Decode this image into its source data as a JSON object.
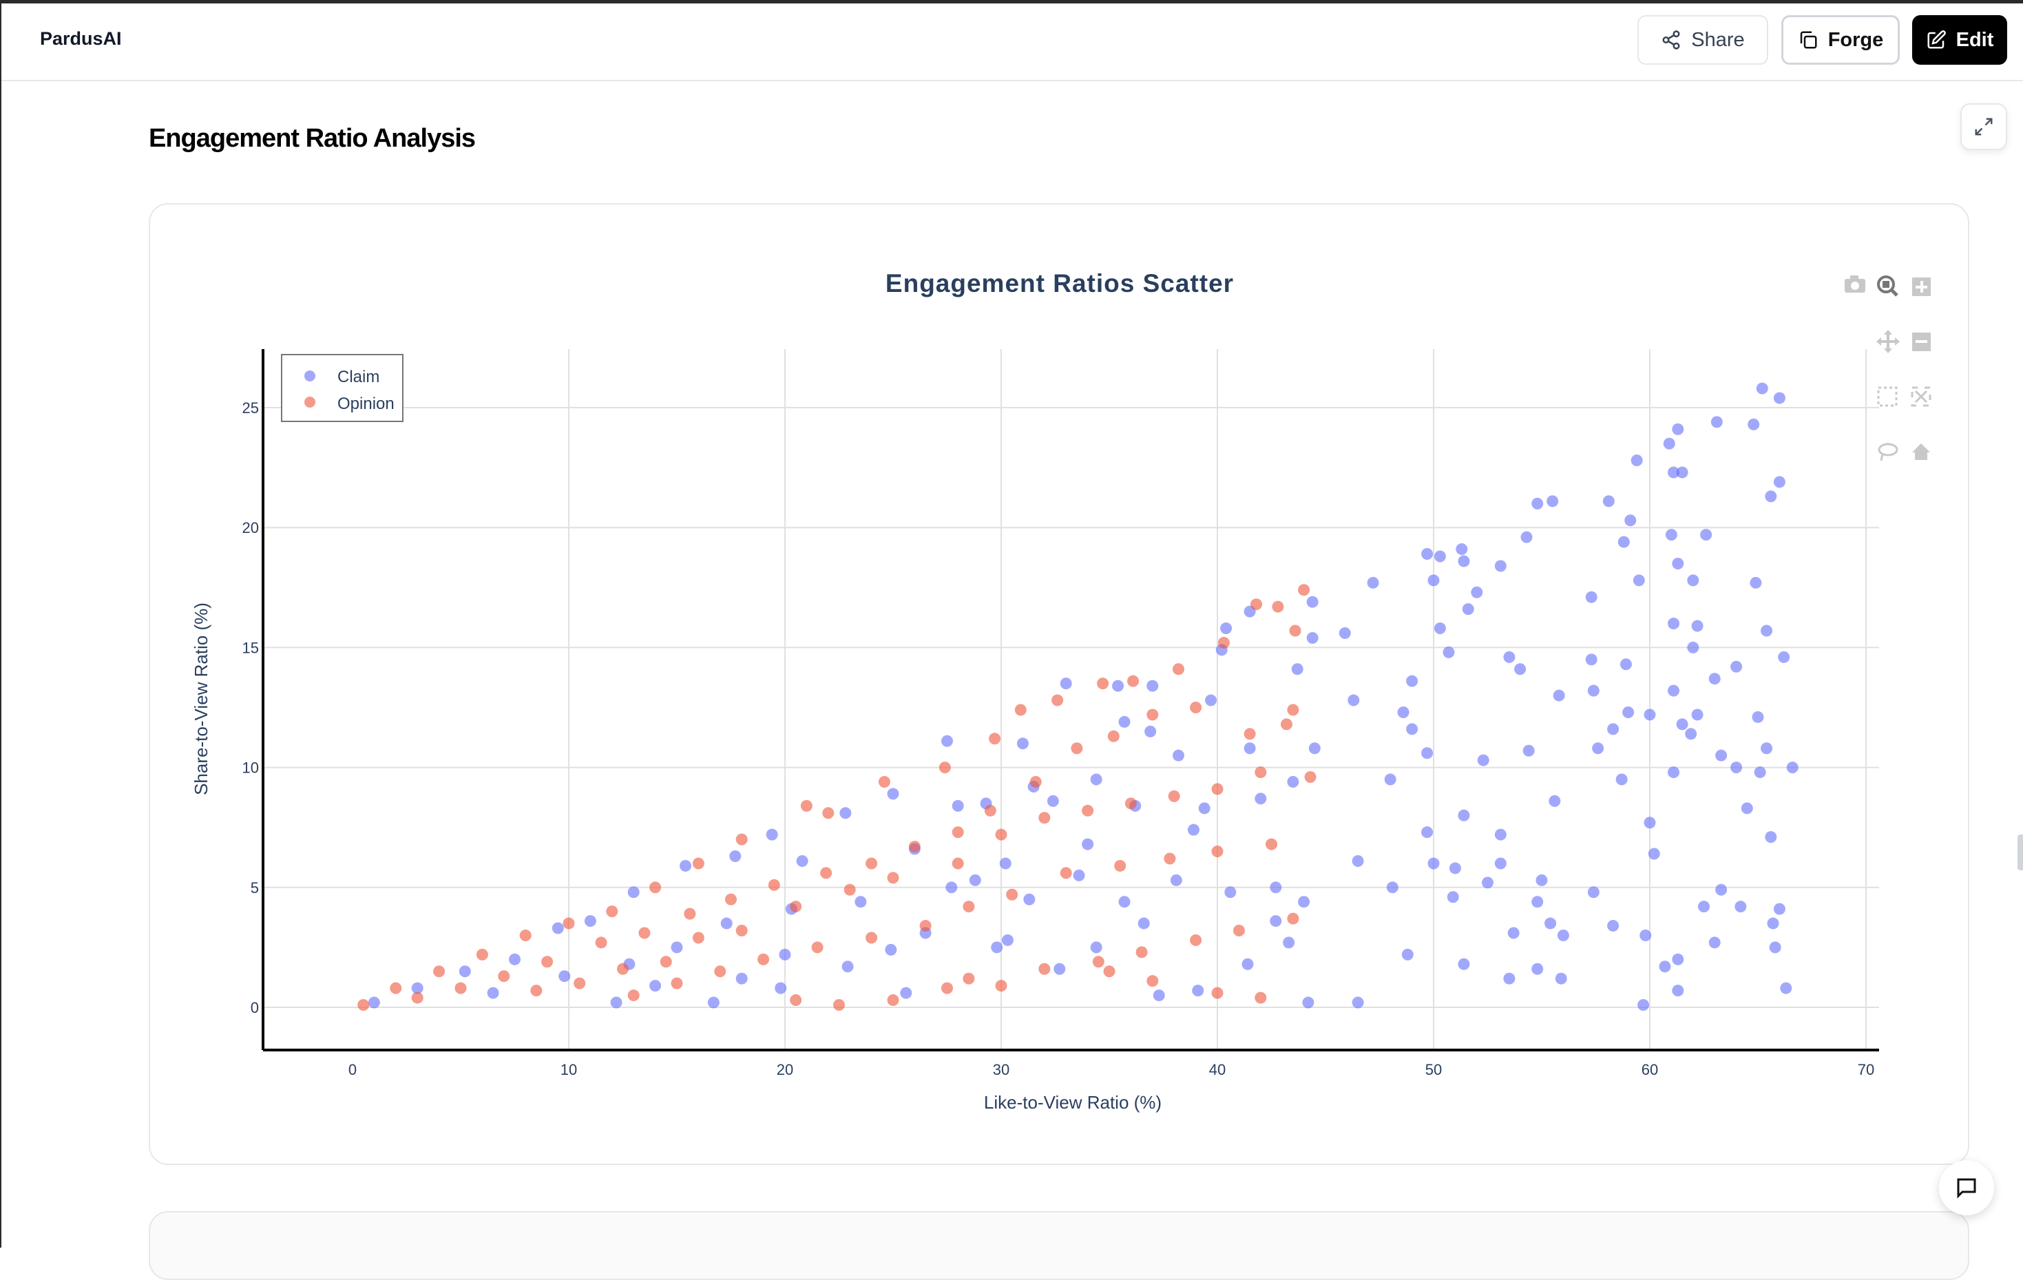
{
  "header": {
    "brand": "PardusAI",
    "share_label": "Share",
    "forge_label": "Forge",
    "edit_label": "Edit"
  },
  "section": {
    "title": "Engagement Ratio Analysis"
  },
  "colors": {
    "claim": "#636efa",
    "opinion": "#ef553b",
    "title": "#2a3f5f"
  },
  "chart_data": {
    "type": "scatter",
    "title": "Engagement Ratios Scatter",
    "xlabel": "Like-to-View Ratio (%)",
    "ylabel": "Share-to-View Ratio (%)",
    "xlim": [
      -4,
      70.5
    ],
    "ylim": [
      -1.8,
      27.5
    ],
    "xticks": [
      0,
      10,
      20,
      30,
      40,
      50,
      60,
      70
    ],
    "yticks": [
      0,
      5,
      10,
      15,
      20,
      25
    ],
    "grid": true,
    "legend": "top-left",
    "series": [
      {
        "name": "Claim",
        "points": [
          [
            65.2,
            25.8
          ],
          [
            66,
            25.4
          ],
          [
            63.1,
            24.4
          ],
          [
            64.8,
            24.3
          ],
          [
            61.3,
            24.1
          ],
          [
            60.9,
            23.5
          ],
          [
            59.4,
            22.8
          ],
          [
            61.5,
            22.3
          ],
          [
            61.1,
            22.3
          ],
          [
            66,
            21.9
          ],
          [
            65.6,
            21.3
          ],
          [
            58.1,
            21.1
          ],
          [
            54.8,
            21
          ],
          [
            55.5,
            21.1
          ],
          [
            59.1,
            20.3
          ],
          [
            61,
            19.7
          ],
          [
            62.6,
            19.7
          ],
          [
            54.3,
            19.6
          ],
          [
            58.8,
            19.4
          ],
          [
            51.3,
            19.1
          ],
          [
            49.7,
            18.9
          ],
          [
            50.3,
            18.8
          ],
          [
            51.4,
            18.6
          ],
          [
            61.3,
            18.5
          ],
          [
            53.1,
            18.4
          ],
          [
            59.5,
            17.8
          ],
          [
            50,
            17.8
          ],
          [
            62,
            17.8
          ],
          [
            47.2,
            17.7
          ],
          [
            52,
            17.3
          ],
          [
            64.9,
            17.7
          ],
          [
            57.3,
            17.1
          ],
          [
            51.6,
            16.6
          ],
          [
            61.1,
            16
          ],
          [
            62.2,
            15.9
          ],
          [
            65.4,
            15.7
          ],
          [
            50.3,
            15.8
          ],
          [
            45.9,
            15.6
          ],
          [
            62,
            15
          ],
          [
            50.7,
            14.8
          ],
          [
            53.5,
            14.6
          ],
          [
            57.3,
            14.5
          ],
          [
            58.9,
            14.3
          ],
          [
            66.2,
            14.6
          ],
          [
            64,
            14.2
          ],
          [
            54,
            14.1
          ],
          [
            49,
            13.6
          ],
          [
            57.4,
            13.2
          ],
          [
            61.1,
            13.2
          ],
          [
            63,
            13.7
          ],
          [
            55.8,
            13
          ],
          [
            46.3,
            12.8
          ],
          [
            48.6,
            12.3
          ],
          [
            59,
            12.3
          ],
          [
            60,
            12.2
          ],
          [
            62.2,
            12.2
          ],
          [
            65,
            12.1
          ],
          [
            49,
            11.6
          ],
          [
            58.3,
            11.6
          ],
          [
            61.5,
            11.8
          ],
          [
            61.9,
            11.4
          ],
          [
            57.6,
            10.8
          ],
          [
            49.7,
            10.6
          ],
          [
            54.4,
            10.7
          ],
          [
            65.4,
            10.8
          ],
          [
            64,
            10
          ],
          [
            66.6,
            10
          ],
          [
            52.3,
            10.3
          ],
          [
            63.3,
            10.5
          ],
          [
            48,
            9.5
          ],
          [
            58.7,
            9.5
          ],
          [
            61.1,
            9.8
          ],
          [
            65.1,
            9.8
          ],
          [
            51.4,
            8
          ],
          [
            60,
            7.7
          ],
          [
            64.5,
            8.3
          ],
          [
            55.6,
            8.6
          ],
          [
            65.6,
            7.1
          ],
          [
            49.7,
            7.3
          ],
          [
            53.1,
            7.2
          ],
          [
            46.5,
            6.1
          ],
          [
            50,
            6
          ],
          [
            51,
            5.8
          ],
          [
            53.1,
            6
          ],
          [
            55,
            5.3
          ],
          [
            60.2,
            6.4
          ],
          [
            63.3,
            4.9
          ],
          [
            52.5,
            5.2
          ],
          [
            48.1,
            5
          ],
          [
            57.4,
            4.8
          ],
          [
            54.8,
            4.4
          ],
          [
            50.9,
            4.6
          ],
          [
            62.5,
            4.2
          ],
          [
            64.2,
            4.2
          ],
          [
            66,
            4.1
          ],
          [
            55.4,
            3.5
          ],
          [
            58.3,
            3.4
          ],
          [
            53.7,
            3.1
          ],
          [
            59.8,
            3
          ],
          [
            65.7,
            3.5
          ],
          [
            56,
            3
          ],
          [
            65.8,
            2.5
          ],
          [
            63,
            2.7
          ],
          [
            48.8,
            2.2
          ],
          [
            51.4,
            1.8
          ],
          [
            54.8,
            1.6
          ],
          [
            60.7,
            1.7
          ],
          [
            61.3,
            2
          ],
          [
            53.5,
            1.2
          ],
          [
            66.3,
            0.8
          ],
          [
            59.7,
            0.1
          ],
          [
            46.5,
            0.2
          ],
          [
            44.2,
            0.2
          ],
          [
            55.9,
            1.2
          ],
          [
            61.3,
            0.7
          ],
          [
            27.5,
            11.1
          ],
          [
            33,
            13.5
          ],
          [
            35.4,
            13.4
          ],
          [
            37,
            13.4
          ],
          [
            40.2,
            14.9
          ],
          [
            40.4,
            15.8
          ],
          [
            41.5,
            16.5
          ],
          [
            44.4,
            16.9
          ],
          [
            44.4,
            15.4
          ],
          [
            43.7,
            14.1
          ],
          [
            41.5,
            10.8
          ],
          [
            38.2,
            10.5
          ],
          [
            35.7,
            11.9
          ],
          [
            31,
            11
          ],
          [
            29.3,
            8.5
          ],
          [
            25,
            8.9
          ],
          [
            22.8,
            8.1
          ],
          [
            19.4,
            7.2
          ],
          [
            17.7,
            6.3
          ],
          [
            15.4,
            5.9
          ],
          [
            13,
            4.8
          ],
          [
            11,
            3.6
          ],
          [
            9.5,
            3.3
          ],
          [
            7.5,
            2
          ],
          [
            5.2,
            1.5
          ],
          [
            3,
            0.8
          ],
          [
            1,
            0.2
          ],
          [
            20.8,
            6.1
          ],
          [
            23.5,
            4.4
          ],
          [
            26,
            6.6
          ],
          [
            28.8,
            5.3
          ],
          [
            30.2,
            6
          ],
          [
            31.3,
            4.5
          ],
          [
            33.6,
            5.5
          ],
          [
            35.7,
            4.4
          ],
          [
            38.1,
            5.3
          ],
          [
            40.6,
            4.8
          ],
          [
            42.7,
            5
          ],
          [
            43.5,
            9.4
          ],
          [
            44.5,
            10.8
          ],
          [
            42,
            8.7
          ],
          [
            39.4,
            8.3
          ],
          [
            36.2,
            8.4
          ],
          [
            34.4,
            9.5
          ],
          [
            32.4,
            8.6
          ],
          [
            28,
            8.4
          ],
          [
            26.5,
            3.1
          ],
          [
            24.9,
            2.4
          ],
          [
            22.9,
            1.7
          ],
          [
            20,
            2.2
          ],
          [
            18,
            1.2
          ],
          [
            16.7,
            0.2
          ],
          [
            14,
            0.9
          ],
          [
            12.2,
            0.2
          ],
          [
            29.8,
            2.5
          ],
          [
            32.7,
            1.6
          ],
          [
            34.4,
            2.5
          ],
          [
            37.3,
            0.5
          ],
          [
            39.1,
            0.7
          ],
          [
            41.4,
            1.8
          ],
          [
            43.3,
            2.7
          ],
          [
            42.7,
            3.6
          ],
          [
            44,
            4.4
          ],
          [
            31.5,
            9.2
          ],
          [
            36.9,
            11.5
          ],
          [
            39.7,
            12.8
          ],
          [
            38.9,
            7.4
          ],
          [
            34,
            6.8
          ],
          [
            27.7,
            5
          ],
          [
            20.3,
            4.1
          ],
          [
            17.3,
            3.5
          ],
          [
            15,
            2.5
          ],
          [
            12.8,
            1.8
          ],
          [
            9.8,
            1.3
          ],
          [
            6.5,
            0.6
          ],
          [
            19.8,
            0.8
          ],
          [
            25.6,
            0.6
          ],
          [
            30.3,
            2.8
          ],
          [
            36.6,
            3.5
          ]
        ]
      },
      {
        "name": "Opinion",
        "points": [
          [
            44,
            17.4
          ],
          [
            42.8,
            16.7
          ],
          [
            41.8,
            16.8
          ],
          [
            43.6,
            15.7
          ],
          [
            40.3,
            15.2
          ],
          [
            38.2,
            14.1
          ],
          [
            36.1,
            13.6
          ],
          [
            34.7,
            13.5
          ],
          [
            32.6,
            12.8
          ],
          [
            30.9,
            12.4
          ],
          [
            29.7,
            11.2
          ],
          [
            27.4,
            10
          ],
          [
            24.6,
            9.4
          ],
          [
            22,
            8.1
          ],
          [
            21,
            8.4
          ],
          [
            18,
            7
          ],
          [
            16,
            6
          ],
          [
            14,
            5
          ],
          [
            12,
            4
          ],
          [
            10,
            3.5
          ],
          [
            8,
            3
          ],
          [
            6,
            2.2
          ],
          [
            4,
            1.5
          ],
          [
            2,
            0.8
          ],
          [
            0.5,
            0.1
          ],
          [
            43.5,
            12.4
          ],
          [
            43.2,
            11.8
          ],
          [
            41.5,
            11.4
          ],
          [
            39,
            12.5
          ],
          [
            37,
            12.2
          ],
          [
            35.2,
            11.3
          ],
          [
            33.5,
            10.8
          ],
          [
            31.6,
            9.4
          ],
          [
            29.5,
            8.2
          ],
          [
            28,
            7.3
          ],
          [
            26,
            6.7
          ],
          [
            24,
            6
          ],
          [
            21.9,
            5.6
          ],
          [
            19.5,
            5.1
          ],
          [
            17.5,
            4.5
          ],
          [
            15.6,
            3.9
          ],
          [
            13.5,
            3.1
          ],
          [
            11.5,
            2.7
          ],
          [
            9,
            1.9
          ],
          [
            7,
            1.3
          ],
          [
            5,
            0.8
          ],
          [
            3,
            0.4
          ],
          [
            44.3,
            9.6
          ],
          [
            42,
            9.8
          ],
          [
            40,
            9.1
          ],
          [
            38,
            8.8
          ],
          [
            36,
            8.5
          ],
          [
            34,
            8.2
          ],
          [
            32,
            7.9
          ],
          [
            30,
            7.2
          ],
          [
            28,
            6
          ],
          [
            25,
            5.4
          ],
          [
            23,
            4.9
          ],
          [
            20.5,
            4.2
          ],
          [
            18,
            3.2
          ],
          [
            16,
            2.9
          ],
          [
            14.5,
            1.9
          ],
          [
            12.5,
            1.6
          ],
          [
            10.5,
            1
          ],
          [
            8.5,
            0.7
          ],
          [
            42.5,
            6.8
          ],
          [
            40,
            6.5
          ],
          [
            37.8,
            6.2
          ],
          [
            35.5,
            5.9
          ],
          [
            33,
            5.6
          ],
          [
            30.5,
            4.7
          ],
          [
            28.5,
            4.2
          ],
          [
            26.5,
            3.4
          ],
          [
            24,
            2.9
          ],
          [
            21.5,
            2.5
          ],
          [
            19,
            2
          ],
          [
            17,
            1.5
          ],
          [
            15,
            1
          ],
          [
            13,
            0.5
          ],
          [
            43.5,
            3.7
          ],
          [
            41,
            3.2
          ],
          [
            39,
            2.8
          ],
          [
            36.5,
            2.3
          ],
          [
            34.5,
            1.9
          ],
          [
            32,
            1.6
          ],
          [
            30,
            0.9
          ],
          [
            27.5,
            0.8
          ],
          [
            25,
            0.3
          ],
          [
            22.5,
            0.1
          ],
          [
            20.5,
            0.3
          ],
          [
            40,
            0.6
          ],
          [
            42,
            0.4
          ],
          [
            37,
            1.1
          ],
          [
            35,
            1.5
          ],
          [
            28.5,
            1.2
          ]
        ]
      }
    ]
  }
}
